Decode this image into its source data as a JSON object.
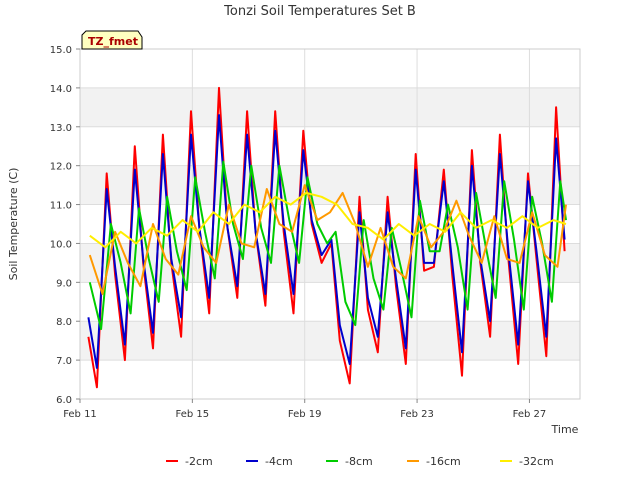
{
  "chart_data": {
    "type": "line",
    "title": "Tonzi Soil Temperatures Set B",
    "xlabel": "Time",
    "ylabel": "Soil Temperature (C)",
    "annotation": "TZ_fmet",
    "xlim": [
      0,
      17.8
    ],
    "ylim": [
      6.0,
      15.0
    ],
    "yticks": [
      6.0,
      7.0,
      8.0,
      9.0,
      10.0,
      11.0,
      12.0,
      13.0,
      14.0,
      15.0
    ],
    "ytick_labels": [
      "6.0",
      "7.0",
      "8.0",
      "9.0",
      "10.0",
      "11.0",
      "12.0",
      "13.0",
      "14.0",
      "15.0"
    ],
    "xticks": [
      0,
      4,
      8,
      12,
      16
    ],
    "xtick_labels": [
      "Feb 11",
      "Feb 15",
      "Feb 19",
      "Feb 23",
      "Feb 27"
    ],
    "grid": true,
    "legend_position": "bottom",
    "series": [
      {
        "name": "-2cm",
        "color": "#ff0000",
        "x": [
          0.3,
          0.6,
          0.95,
          1.25,
          1.6,
          1.95,
          2.25,
          2.6,
          2.95,
          3.25,
          3.6,
          3.95,
          4.25,
          4.6,
          4.95,
          5.25,
          5.6,
          5.95,
          6.25,
          6.6,
          6.95,
          7.25,
          7.6,
          7.95,
          8.25,
          8.6,
          8.95,
          9.25,
          9.6,
          9.95,
          10.25,
          10.6,
          10.95,
          11.25,
          11.6,
          11.95,
          12.25,
          12.6,
          12.95,
          13.25,
          13.6,
          13.95,
          14.25,
          14.6,
          14.95,
          15.25,
          15.6,
          15.95,
          16.25,
          16.6,
          16.95,
          17.25
        ],
        "y": [
          7.6,
          6.3,
          11.8,
          9.2,
          7.0,
          12.5,
          9.5,
          7.3,
          12.8,
          9.5,
          7.6,
          13.4,
          10.4,
          8.2,
          14.0,
          10.4,
          8.6,
          13.4,
          10.3,
          8.4,
          13.4,
          10.3,
          8.2,
          12.9,
          10.5,
          9.5,
          10.0,
          7.5,
          6.4,
          11.2,
          8.3,
          7.2,
          11.2,
          8.9,
          6.9,
          12.3,
          9.3,
          9.4,
          11.9,
          9.2,
          6.6,
          12.4,
          9.5,
          7.6,
          12.8,
          9.6,
          6.9,
          11.8,
          9.6,
          7.1,
          13.5,
          9.8
        ]
      },
      {
        "name": "-4cm",
        "color": "#0000cc",
        "x": [
          0.3,
          0.6,
          0.95,
          1.25,
          1.6,
          1.95,
          2.25,
          2.6,
          2.95,
          3.25,
          3.6,
          3.95,
          4.25,
          4.6,
          4.95,
          5.25,
          5.6,
          5.95,
          6.25,
          6.6,
          6.95,
          7.25,
          7.6,
          7.95,
          8.25,
          8.6,
          8.95,
          9.25,
          9.6,
          9.95,
          10.25,
          10.6,
          10.95,
          11.25,
          11.6,
          11.95,
          12.25,
          12.6,
          12.95,
          13.25,
          13.6,
          13.95,
          14.25,
          14.6,
          14.95,
          15.25,
          15.6,
          15.95,
          16.25,
          16.6,
          16.95,
          17.25
        ],
        "y": [
          8.1,
          6.8,
          11.4,
          9.4,
          7.4,
          11.9,
          9.6,
          7.7,
          12.3,
          9.6,
          8.1,
          12.8,
          10.4,
          8.6,
          13.3,
          10.4,
          8.9,
          12.8,
          10.3,
          8.7,
          12.9,
          10.5,
          8.7,
          12.4,
          10.6,
          9.7,
          10.1,
          7.9,
          6.9,
          10.8,
          8.6,
          7.6,
          10.8,
          9.1,
          7.3,
          11.9,
          9.5,
          9.5,
          11.6,
          9.5,
          7.2,
          12.0,
          9.6,
          8.0,
          12.3,
          9.8,
          7.4,
          11.6,
          9.8,
          7.6,
          12.7,
          10.1
        ]
      },
      {
        "name": "-8cm",
        "color": "#00cc00",
        "x": [
          0.35,
          0.75,
          1.1,
          1.45,
          1.8,
          2.1,
          2.45,
          2.8,
          3.1,
          3.45,
          3.8,
          4.1,
          4.45,
          4.8,
          5.1,
          5.45,
          5.8,
          6.1,
          6.45,
          6.8,
          7.1,
          7.45,
          7.8,
          8.1,
          8.45,
          8.8,
          9.1,
          9.45,
          9.8,
          10.1,
          10.45,
          10.8,
          11.1,
          11.45,
          11.8,
          12.1,
          12.45,
          12.8,
          13.1,
          13.45,
          13.8,
          14.1,
          14.45,
          14.8,
          15.1,
          15.45,
          15.8,
          16.1,
          16.45,
          16.8,
          17.1,
          17.3
        ],
        "y": [
          9.0,
          7.8,
          10.5,
          9.5,
          8.2,
          10.9,
          9.6,
          8.5,
          11.2,
          9.8,
          8.8,
          11.7,
          10.3,
          9.1,
          12.1,
          10.5,
          9.6,
          12.0,
          10.4,
          9.5,
          12.0,
          10.6,
          9.5,
          11.7,
          10.5,
          10.0,
          10.3,
          8.5,
          7.9,
          10.6,
          9.1,
          8.3,
          10.4,
          9.3,
          8.1,
          11.1,
          9.8,
          9.8,
          11.0,
          9.9,
          8.3,
          11.3,
          9.9,
          8.6,
          11.6,
          10.1,
          8.3,
          11.2,
          10.0,
          8.5,
          11.6,
          10.6
        ]
      },
      {
        "name": "-16cm",
        "color": "#ff9900",
        "x": [
          0.35,
          0.8,
          1.25,
          1.7,
          2.15,
          2.6,
          3.05,
          3.5,
          3.95,
          4.4,
          4.85,
          5.3,
          5.75,
          6.2,
          6.65,
          7.1,
          7.55,
          8.0,
          8.45,
          8.9,
          9.35,
          9.8,
          10.25,
          10.7,
          11.15,
          11.6,
          12.05,
          12.5,
          12.95,
          13.4,
          13.85,
          14.3,
          14.75,
          15.2,
          15.65,
          16.1,
          16.55,
          17.0,
          17.3
        ],
        "y": [
          9.7,
          8.7,
          10.3,
          9.5,
          8.9,
          10.5,
          9.6,
          9.2,
          10.7,
          9.9,
          9.5,
          11.0,
          10.0,
          9.9,
          11.4,
          10.5,
          10.3,
          11.5,
          10.6,
          10.8,
          11.3,
          10.5,
          9.4,
          10.4,
          9.4,
          9.1,
          10.7,
          9.9,
          10.3,
          11.1,
          10.2,
          9.5,
          10.7,
          9.6,
          9.5,
          10.8,
          9.7,
          9.4,
          11.0
        ]
      },
      {
        "name": "-32cm",
        "color": "#ffee00",
        "x": [
          0.35,
          0.9,
          1.45,
          2.0,
          2.55,
          3.1,
          3.65,
          4.2,
          4.75,
          5.3,
          5.85,
          6.4,
          6.95,
          7.5,
          8.05,
          8.6,
          9.15,
          9.7,
          10.25,
          10.8,
          11.35,
          11.9,
          12.45,
          13.0,
          13.55,
          14.1,
          14.65,
          15.2,
          15.75,
          16.3,
          16.85,
          17.3
        ],
        "y": [
          10.2,
          9.9,
          10.3,
          10.0,
          10.4,
          10.2,
          10.6,
          10.3,
          10.8,
          10.5,
          11.0,
          10.8,
          11.2,
          11.0,
          11.3,
          11.2,
          11.0,
          10.5,
          10.4,
          10.1,
          10.5,
          10.2,
          10.5,
          10.3,
          10.8,
          10.4,
          10.6,
          10.4,
          10.7,
          10.4,
          10.6,
          10.5
        ]
      }
    ]
  }
}
